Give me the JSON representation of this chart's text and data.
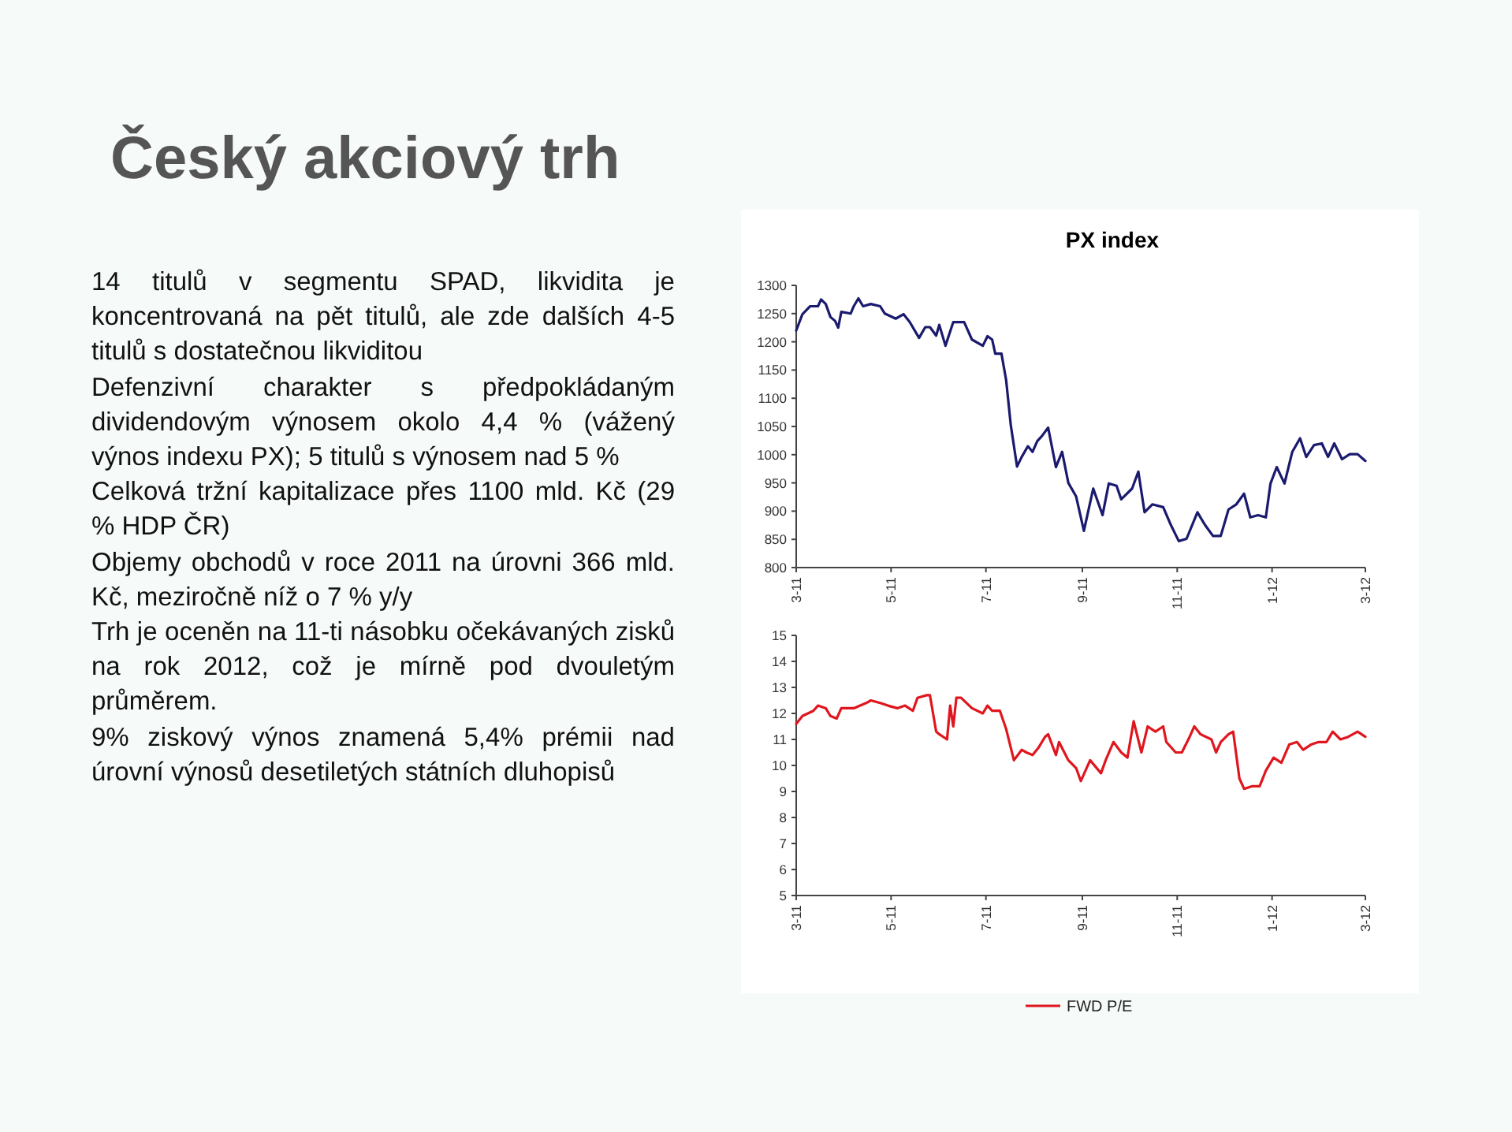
{
  "chart_data": [
    {
      "type": "other",
      "title": "Český akciový trh",
      "annotations": [
        "14 titulů v segmentu SPAD,  likvidita je koncentrovaná na pět titulů, ale zde dalších 4-5 titulů s dostatečnou likviditou",
        "Defenzivní charakter s předpokládaným dividendovým výnosem okolo 4,4 % (vážený výnos indexu PX); 5 titulů s výnosem nad 5 %",
        "Celková tržní kapitalizace přes 1100 mld. Kč (29 % HDP ČR)",
        "Objemy obchodů v roce 2011 na úrovni 366 mld. Kč, meziročně níž o 7 % y/y",
        "Trh je oceněn na 11-ti násobku očekávaných zisků na rok 2012, což je  mírně pod dvouletým průměrem.",
        "9% ziskový výnos znamená 5,4% prémii nad úrovní výnosů desetiletých státních dluhopisů"
      ]
    },
    {
      "type": "line",
      "title": "PX index",
      "xlim": [
        "2011-03-01",
        "2012-03-01"
      ],
      "xticks": [
        {
          "value": "2011-03-01",
          "label": "3-11"
        },
        {
          "value": "2011-05-01",
          "label": "5-11"
        },
        {
          "value": "2011-07-01",
          "label": "7-11"
        },
        {
          "value": "2011-09-01",
          "label": "9-11"
        },
        {
          "value": "2011-11-01",
          "label": "11-11"
        },
        {
          "value": "2012-01-01",
          "label": "1-12"
        },
        {
          "value": "2012-03-01",
          "label": "3-12"
        }
      ],
      "ylim": [
        800,
        1300
      ],
      "yticks": [
        800,
        850,
        900,
        950,
        1000,
        1050,
        1100,
        1150,
        1200,
        1250,
        1300
      ],
      "legend": false,
      "series": [
        {
          "color": "#1a1a6e",
          "x": [
            "2011-03-01",
            "2011-03-05",
            "2011-03-10",
            "2011-03-15",
            "2011-03-17",
            "2011-03-20",
            "2011-03-23",
            "2011-03-26",
            "2011-03-28",
            "2011-03-30",
            "2011-04-05",
            "2011-04-07",
            "2011-04-10",
            "2011-04-13",
            "2011-04-18",
            "2011-04-24",
            "2011-04-27",
            "2011-05-04",
            "2011-05-09",
            "2011-05-13",
            "2011-05-19",
            "2011-05-23",
            "2011-05-26",
            "2011-05-30",
            "2011-06-01",
            "2011-06-05",
            "2011-06-10",
            "2011-06-17",
            "2011-06-22",
            "2011-06-29",
            "2011-07-02",
            "2011-07-05",
            "2011-07-07",
            "2011-07-11",
            "2011-07-14",
            "2011-07-17",
            "2011-07-21",
            "2011-07-24",
            "2011-07-28",
            "2011-07-31",
            "2011-08-03",
            "2011-08-06",
            "2011-08-10",
            "2011-08-15",
            "2011-08-19",
            "2011-08-23",
            "2011-08-28",
            "2011-09-02",
            "2011-09-08",
            "2011-09-14",
            "2011-09-18",
            "2011-09-23",
            "2011-09-26",
            "2011-10-03",
            "2011-10-07",
            "2011-10-11",
            "2011-10-16",
            "2011-10-23",
            "2011-10-28",
            "2011-11-02",
            "2011-11-07",
            "2011-11-14",
            "2011-11-19",
            "2011-11-24",
            "2011-11-29",
            "2011-12-04",
            "2011-12-09",
            "2011-12-14",
            "2011-12-18",
            "2011-12-23",
            "2011-12-28",
            "2011-12-31",
            "2012-01-04",
            "2012-01-09",
            "2012-01-14",
            "2012-01-19",
            "2012-01-23",
            "2012-01-28",
            "2012-02-02",
            "2012-02-06",
            "2012-02-10",
            "2012-02-15",
            "2012-02-20",
            "2012-02-25",
            "2012-03-01"
          ],
          "values": [
            1220,
            1249,
            1263,
            1263,
            1275,
            1267,
            1244,
            1237,
            1225,
            1253,
            1250,
            1263,
            1277,
            1263,
            1267,
            1263,
            1250,
            1241,
            1249,
            1235,
            1207,
            1226,
            1226,
            1211,
            1230,
            1193,
            1235,
            1235,
            1204,
            1193,
            1210,
            1204,
            1179,
            1179,
            1132,
            1052,
            979,
            996,
            1015,
            1005,
            1024,
            1033,
            1048,
            978,
            1005,
            950,
            926,
            865,
            940,
            893,
            949,
            945,
            921,
            940,
            970,
            898,
            912,
            907,
            875,
            847,
            851,
            898,
            875,
            856,
            856,
            903,
            912,
            931,
            889,
            893,
            889,
            949,
            978,
            949,
            1005,
            1029,
            996,
            1017,
            1020,
            996,
            1020,
            992,
            1001,
            1001,
            989
          ]
        }
      ]
    },
    {
      "type": "line",
      "xlim": [
        "2011-03-01",
        "2012-03-01"
      ],
      "xticks": [
        {
          "value": "2011-03-01",
          "label": "3-11"
        },
        {
          "value": "2011-05-01",
          "label": "5-11"
        },
        {
          "value": "2011-07-01",
          "label": "7-11"
        },
        {
          "value": "2011-09-01",
          "label": "9-11"
        },
        {
          "value": "2011-11-01",
          "label": "11-11"
        },
        {
          "value": "2012-01-01",
          "label": "1-12"
        },
        {
          "value": "2012-03-01",
          "label": "3-12"
        }
      ],
      "ylim": [
        5,
        15
      ],
      "yticks": [
        5,
        6,
        7,
        8,
        9,
        10,
        11,
        12,
        13,
        14,
        15
      ],
      "legend": "bottom",
      "series": [
        {
          "name": "FWD P/E",
          "color": "#e0161e",
          "x": [
            "2011-03-01",
            "2011-03-05",
            "2011-03-12",
            "2011-03-15",
            "2011-03-20",
            "2011-03-23",
            "2011-03-27",
            "2011-03-30",
            "2011-04-07",
            "2011-04-15",
            "2011-04-18",
            "2011-04-24",
            "2011-04-29",
            "2011-05-05",
            "2011-05-10",
            "2011-05-15",
            "2011-05-18",
            "2011-05-24",
            "2011-05-26",
            "2011-05-30",
            "2011-06-01",
            "2011-06-06",
            "2011-06-08",
            "2011-06-10",
            "2011-06-12",
            "2011-06-15",
            "2011-06-22",
            "2011-06-29",
            "2011-07-02",
            "2011-07-05",
            "2011-07-10",
            "2011-07-14",
            "2011-07-19",
            "2011-07-24",
            "2011-07-27",
            "2011-07-31",
            "2011-08-04",
            "2011-08-08",
            "2011-08-10",
            "2011-08-15",
            "2011-08-17",
            "2011-08-23",
            "2011-08-28",
            "2011-08-31",
            "2011-09-06",
            "2011-09-13",
            "2011-09-16",
            "2011-09-21",
            "2011-09-26",
            "2011-09-30",
            "2011-10-04",
            "2011-10-09",
            "2011-10-13",
            "2011-10-18",
            "2011-10-23",
            "2011-10-25",
            "2011-10-31",
            "2011-11-04",
            "2011-11-09",
            "2011-11-12",
            "2011-11-16",
            "2011-11-23",
            "2011-11-26",
            "2011-11-29",
            "2011-12-04",
            "2011-12-07",
            "2011-12-11",
            "2011-12-14",
            "2011-12-19",
            "2011-12-24",
            "2011-12-28",
            "2012-01-02",
            "2012-01-07",
            "2012-01-12",
            "2012-01-17",
            "2012-01-21",
            "2012-01-26",
            "2012-01-31",
            "2012-02-05",
            "2012-02-09",
            "2012-02-14",
            "2012-02-19",
            "2012-02-25",
            "2012-03-01"
          ],
          "values": [
            11.6,
            11.9,
            12.1,
            12.3,
            12.2,
            11.9,
            11.8,
            12.2,
            12.2,
            12.4,
            12.5,
            12.4,
            12.3,
            12.2,
            12.3,
            12.1,
            12.6,
            12.7,
            12.7,
            11.3,
            11.2,
            11.0,
            12.3,
            11.5,
            12.6,
            12.6,
            12.2,
            12.0,
            12.3,
            12.1,
            12.1,
            11.4,
            10.2,
            10.6,
            10.5,
            10.4,
            10.7,
            11.1,
            11.2,
            10.4,
            10.9,
            10.2,
            9.9,
            9.4,
            10.2,
            9.7,
            10.2,
            10.9,
            10.5,
            10.3,
            11.7,
            10.5,
            11.5,
            11.3,
            11.5,
            10.9,
            10.5,
            10.5,
            11.1,
            11.5,
            11.2,
            11.0,
            10.5,
            10.9,
            11.2,
            11.3,
            9.5,
            9.1,
            9.2,
            9.2,
            9.8,
            10.3,
            10.1,
            10.8,
            10.9,
            10.6,
            10.8,
            10.9,
            10.9,
            11.3,
            11.0,
            11.1,
            11.3,
            11.1
          ]
        }
      ]
    }
  ]
}
